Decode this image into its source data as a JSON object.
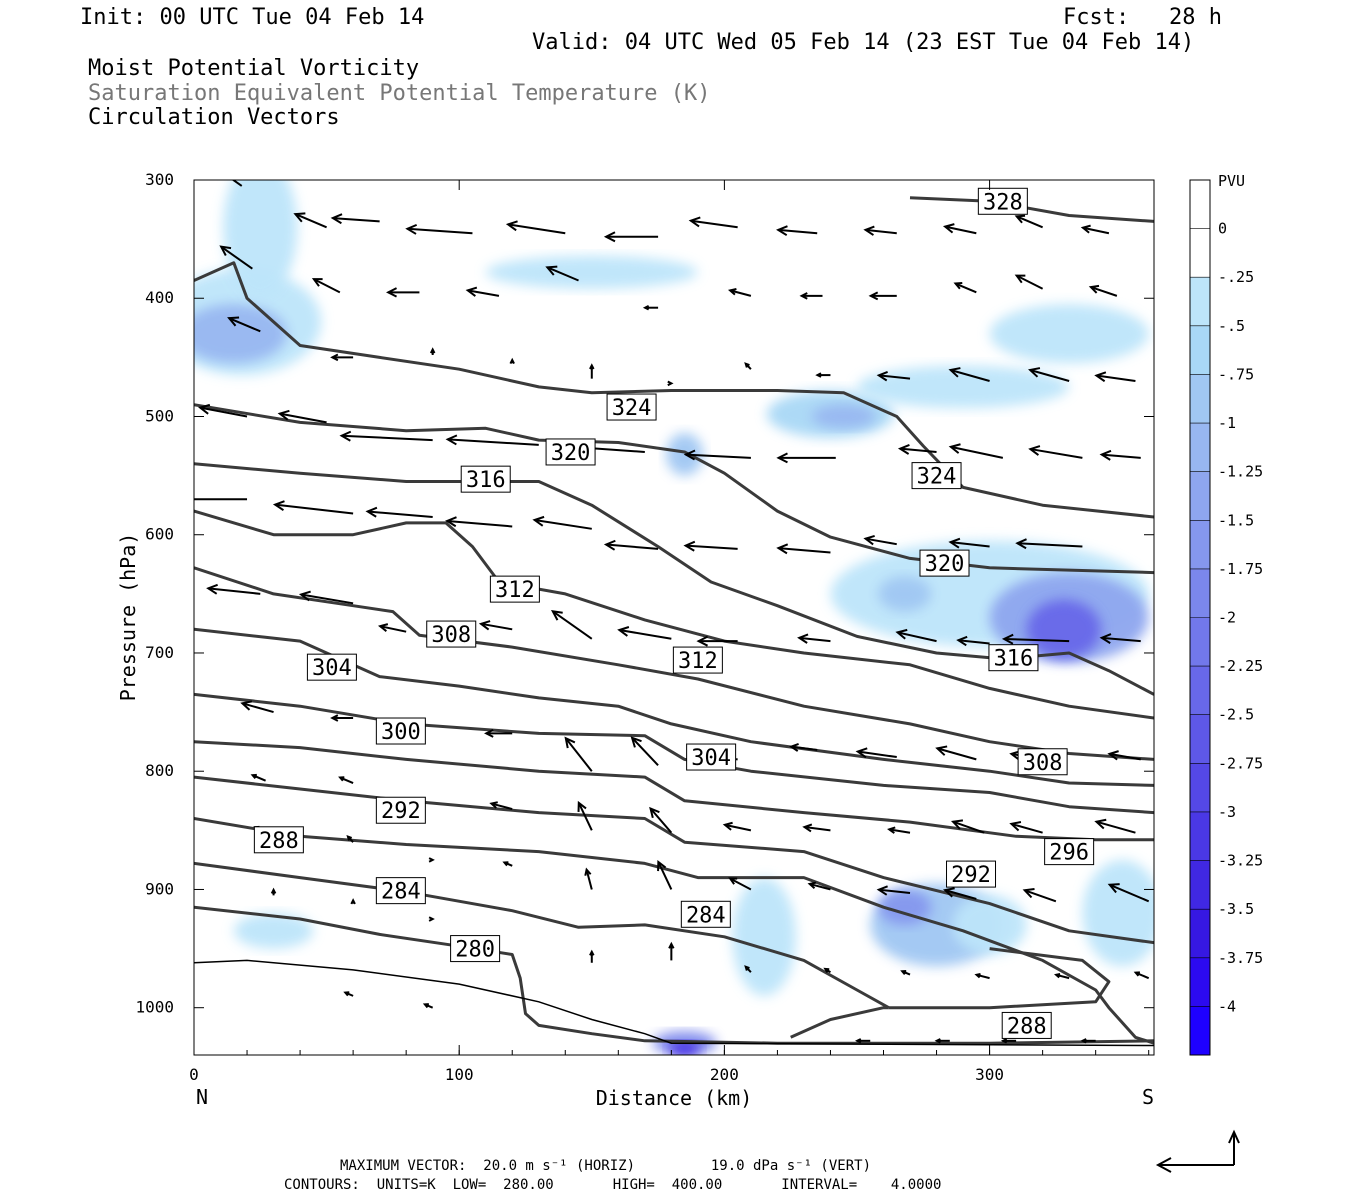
{
  "header": {
    "init": "Init: 00 UTC Tue 04 Feb 14",
    "fcst": "Fcst:   28 h",
    "valid": "Valid: 04 UTC Wed 05 Feb 14 (23 EST Tue 04 Feb 14)",
    "field1": "Moist Potential Vorticity",
    "field2": "Saturation Equivalent Potential Temperature (K)",
    "field3": "Circulation Vectors"
  },
  "footer": {
    "max_vector": "MAXIMUM VECTOR:  20.0 m s⁻¹ (HORIZ)         19.0 dPa s⁻¹ (VERT)",
    "contours": "CONTOURS:  UNITS=K  LOW=  280.00       HIGH=  400.00       INTERVAL=    4.0000"
  },
  "chart_data": {
    "type": "cross-section contour",
    "xlabel": "Distance (km)",
    "ylabel": "Pressure (hPa)",
    "x_ticks": [
      0,
      100,
      200,
      300
    ],
    "y_ticks": [
      300,
      400,
      500,
      600,
      700,
      800,
      900,
      1000
    ],
    "xlim": [
      0,
      362
    ],
    "ylim": [
      300,
      1040
    ],
    "x_end_labels": {
      "left": "N",
      "right": "S"
    },
    "colorbar": {
      "unit": "PVU",
      "levels": [
        "0",
        "-.25",
        "-.5",
        "-.75",
        "-1",
        "-1.25",
        "-1.5",
        "-1.75",
        "-2",
        "-2.25",
        "-2.5",
        "-2.75",
        "-3",
        "-3.25",
        "-3.5",
        "-3.75",
        "-4"
      ],
      "colors": [
        "#ffffff",
        "#ffffff",
        "#bde5fa",
        "#a9d8f6",
        "#a0c7f3",
        "#98b7f1",
        "#8ea6ef",
        "#8597ee",
        "#7b87ec",
        "#7278eb",
        "#6868e9",
        "#5e58e8",
        "#5448e6",
        "#4a38e5",
        "#4028e3",
        "#3618e2",
        "#2c0af0",
        "#1e00ff"
      ]
    },
    "contour_labels": [
      {
        "text": "328",
        "x": 305,
        "p": 318
      },
      {
        "text": "324",
        "x": 165,
        "p": 492
      },
      {
        "text": "324",
        "x": 280,
        "p": 550
      },
      {
        "text": "320",
        "x": 142,
        "p": 530
      },
      {
        "text": "320",
        "x": 283,
        "p": 624
      },
      {
        "text": "316",
        "x": 110,
        "p": 553
      },
      {
        "text": "316",
        "x": 309,
        "p": 704
      },
      {
        "text": "312",
        "x": 121,
        "p": 646
      },
      {
        "text": "312",
        "x": 190,
        "p": 706
      },
      {
        "text": "308",
        "x": 97,
        "p": 684
      },
      {
        "text": "308",
        "x": 320,
        "p": 792
      },
      {
        "text": "304",
        "x": 52,
        "p": 712
      },
      {
        "text": "304",
        "x": 195,
        "p": 788
      },
      {
        "text": "300",
        "x": 78,
        "p": 766
      },
      {
        "text": "296",
        "x": 330,
        "p": 868
      },
      {
        "text": "292",
        "x": 78,
        "p": 833
      },
      {
        "text": "292",
        "x": 293,
        "p": 887
      },
      {
        "text": "288",
        "x": 32,
        "p": 858
      },
      {
        "text": "288",
        "x": 314,
        "p": 1015
      },
      {
        "text": "284",
        "x": 78,
        "p": 901
      },
      {
        "text": "284",
        "x": 193,
        "p": 921
      },
      {
        "text": "280",
        "x": 106,
        "p": 950
      }
    ]
  }
}
